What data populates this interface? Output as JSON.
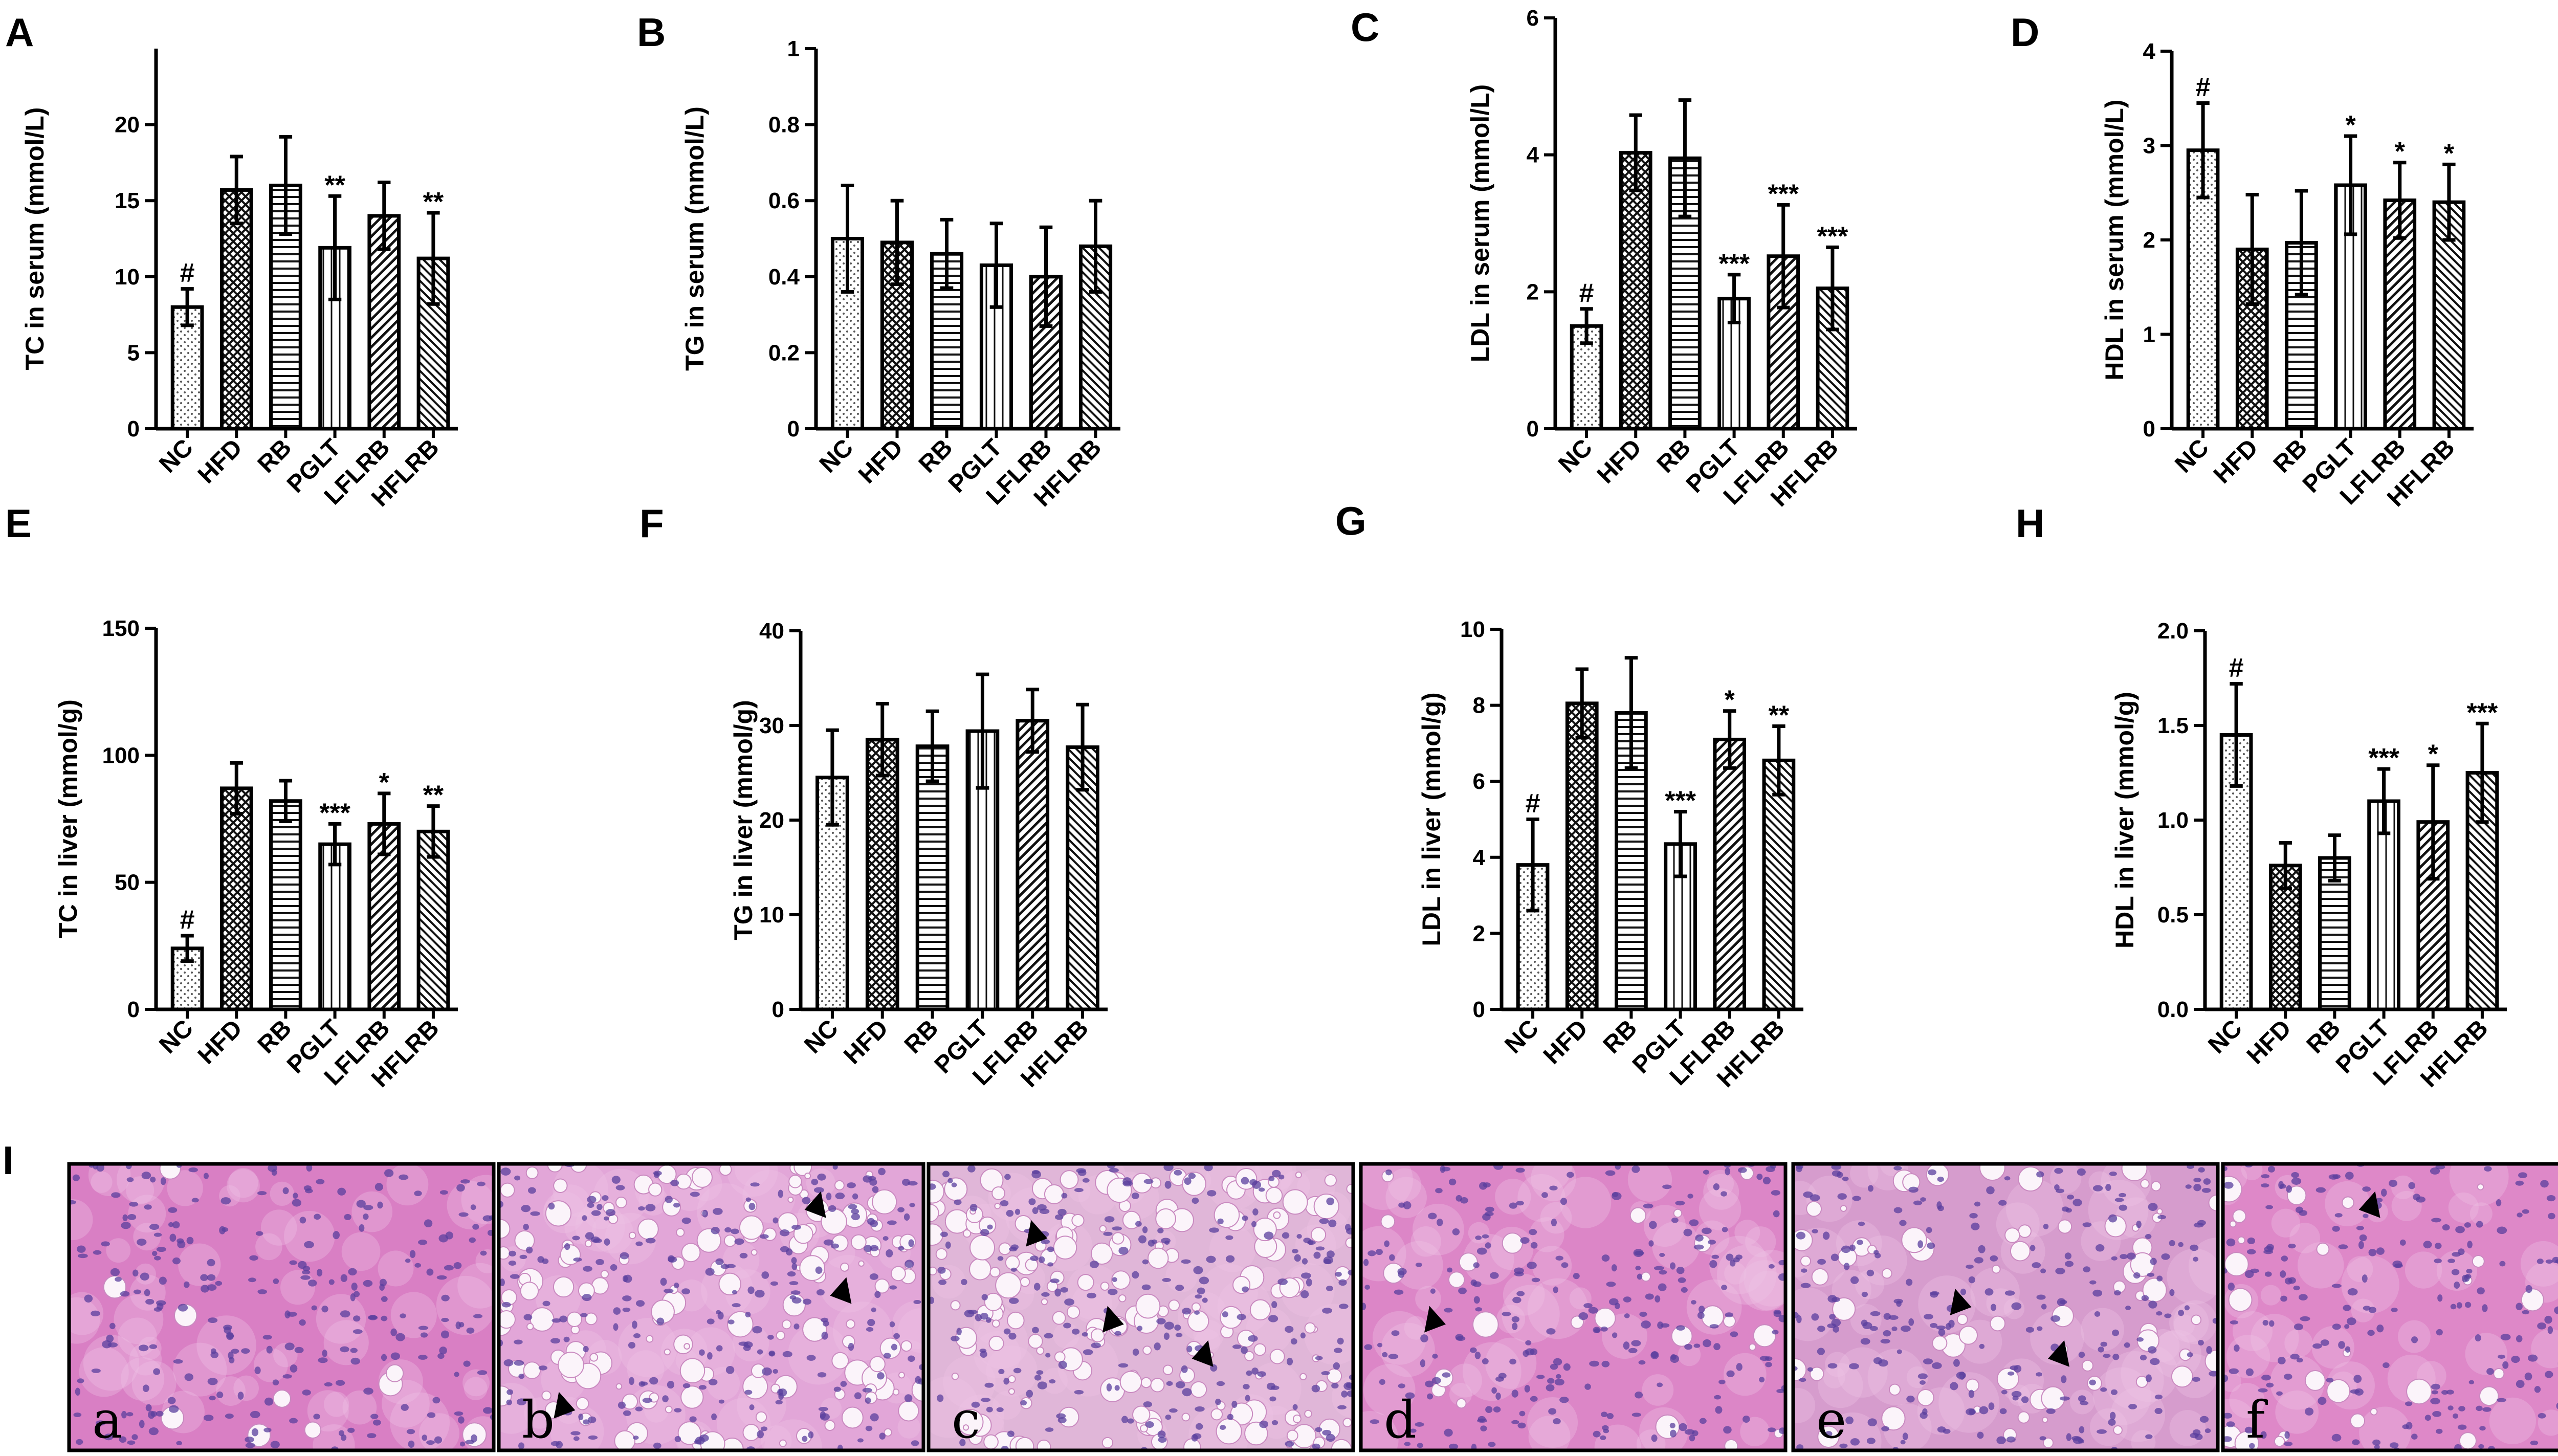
{
  "categories": [
    "NC",
    "HFD",
    "RB",
    "PGLT",
    "LFLRB",
    "HFLRB"
  ],
  "chart_data": [
    {
      "id": "A",
      "type": "bar",
      "ylabel": "TC in serum (mmol/L)",
      "ylim": [
        0,
        25
      ],
      "yticks": [
        0,
        5,
        10,
        15,
        20
      ],
      "values": [
        8.0,
        15.7,
        16.0,
        11.9,
        14.0,
        11.2
      ],
      "errors": [
        1.2,
        2.2,
        3.2,
        3.4,
        2.2,
        3.0
      ],
      "significance": [
        "#",
        "",
        "",
        "**",
        "",
        "**"
      ]
    },
    {
      "id": "B",
      "type": "bar",
      "ylabel": "TG in serum (mmol/L)",
      "ylim": [
        0,
        1.0
      ],
      "yticks": [
        0.0,
        0.2,
        0.4,
        0.6,
        0.8,
        1.0
      ],
      "values": [
        0.5,
        0.49,
        0.46,
        0.43,
        0.4,
        0.48
      ],
      "errors": [
        0.14,
        0.11,
        0.09,
        0.11,
        0.13,
        0.12
      ],
      "significance": [
        "",
        "",
        "",
        "",
        "",
        ""
      ]
    },
    {
      "id": "C",
      "type": "bar",
      "ylabel": "LDL in serum (mmol/L)",
      "ylim": [
        0,
        6
      ],
      "yticks": [
        0,
        2,
        4,
        6
      ],
      "values": [
        1.5,
        4.03,
        3.95,
        1.9,
        2.52,
        2.05
      ],
      "errors": [
        0.25,
        0.55,
        0.85,
        0.35,
        0.75,
        0.6
      ],
      "significance": [
        "#",
        "",
        "",
        "***",
        "***",
        "***"
      ]
    },
    {
      "id": "D",
      "type": "bar",
      "ylabel": "HDL in serum (mmol/L)",
      "ylim": [
        0,
        4
      ],
      "yticks": [
        0,
        1,
        2,
        3,
        4
      ],
      "values": [
        2.95,
        1.9,
        1.97,
        2.58,
        2.42,
        2.4
      ],
      "errors": [
        0.5,
        0.58,
        0.55,
        0.52,
        0.4,
        0.4
      ],
      "significance": [
        "#",
        "",
        "",
        "*",
        "*",
        "*"
      ]
    },
    {
      "id": "E",
      "type": "bar",
      "ylabel": "TC in liver (mmol/g)",
      "ylim": [
        0,
        150
      ],
      "yticks": [
        0,
        50,
        100,
        150
      ],
      "values": [
        24,
        87,
        82,
        65,
        73,
        70
      ],
      "errors": [
        5,
        10,
        8,
        8,
        12,
        10
      ],
      "significance": [
        "#",
        "",
        "",
        "***",
        "*",
        "**"
      ]
    },
    {
      "id": "F",
      "type": "bar",
      "ylabel": "TG in liver (mmol/g)",
      "ylim": [
        0,
        40
      ],
      "yticks": [
        0,
        10,
        20,
        30,
        40
      ],
      "values": [
        24.5,
        28.5,
        27.8,
        29.4,
        30.5,
        27.7
      ],
      "errors": [
        5.0,
        3.8,
        3.7,
        6.0,
        3.3,
        4.5
      ],
      "significance": [
        "",
        "",
        "",
        "",
        "",
        ""
      ]
    },
    {
      "id": "G",
      "type": "bar",
      "ylabel": "LDL in liver (mmol/g)",
      "ylim": [
        0,
        10
      ],
      "yticks": [
        0,
        2,
        4,
        6,
        8,
        10
      ],
      "values": [
        3.8,
        8.05,
        7.8,
        4.35,
        7.1,
        6.55
      ],
      "errors": [
        1.2,
        0.9,
        1.45,
        0.85,
        0.75,
        0.9
      ],
      "significance": [
        "#",
        "",
        "",
        "***",
        "*",
        "**"
      ]
    },
    {
      "id": "H",
      "type": "bar",
      "ylabel": "HDL in liver (mmol/g)",
      "ylim": [
        0,
        2.0
      ],
      "yticks": [
        "0.0",
        "0.5",
        "1.0",
        "1.5",
        "2.0"
      ],
      "values": [
        1.45,
        0.76,
        0.8,
        1.1,
        0.99,
        1.25
      ],
      "errors": [
        0.27,
        0.12,
        0.12,
        0.17,
        0.3,
        0.26
      ],
      "significance": [
        "#",
        "",
        "",
        "***",
        "*",
        "***"
      ]
    }
  ],
  "panel_I": {
    "letter": "I",
    "images": [
      {
        "label": "a",
        "stain_tone": "#d97fc4",
        "arrowheads": 0
      },
      {
        "label": "b",
        "stain_tone": "#e2a6d8",
        "arrowheads": 3
      },
      {
        "label": "c",
        "stain_tone": "#e0b6d8",
        "arrowheads": 3
      },
      {
        "label": "d",
        "stain_tone": "#dc86c7",
        "arrowheads": 1
      },
      {
        "label": "e",
        "stain_tone": "#d69ccd",
        "arrowheads": 2
      },
      {
        "label": "f",
        "stain_tone": "#de88c8",
        "arrowheads": 1
      }
    ]
  }
}
